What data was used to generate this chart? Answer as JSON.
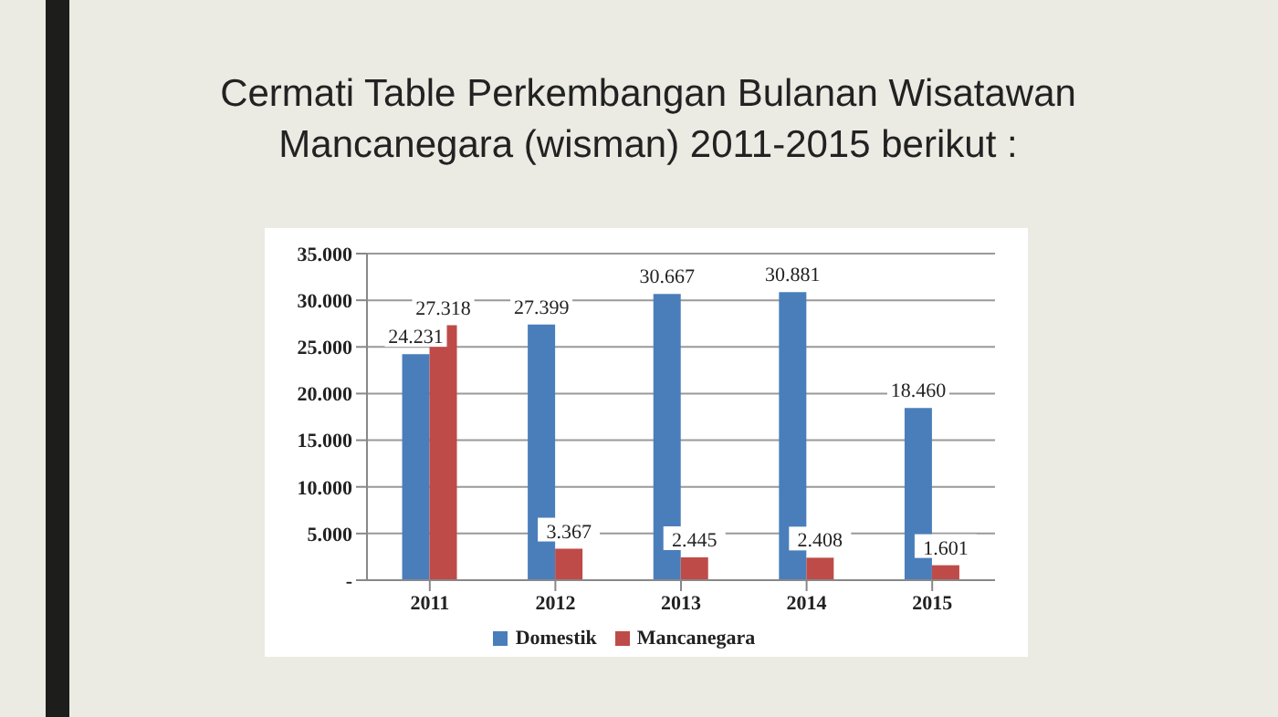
{
  "chart_data": {
    "type": "bar",
    "title": "Cermati Table Perkembangan Bulanan Wisatawan Mancanegara (wisman) 2011-2015 berikut :",
    "categories": [
      "2011",
      "2012",
      "2013",
      "2014",
      "2015"
    ],
    "series": [
      {
        "name": "Domestik",
        "color": "#4a7ebb",
        "values": [
          24231,
          27399,
          30667,
          30881,
          18460
        ],
        "value_labels": [
          "24.231",
          "27.399",
          "30.667",
          "30.881",
          "18.460"
        ]
      },
      {
        "name": "Mancanegara",
        "color": "#be4b48",
        "values": [
          27318,
          3367,
          2445,
          2408,
          1601
        ],
        "value_labels": [
          "27.318",
          "3.367",
          "2.445",
          "2.408",
          "1.601"
        ]
      }
    ],
    "ylim": [
      0,
      35000
    ],
    "yticks": [
      {
        "value": 0,
        "label": "-"
      },
      {
        "value": 5000,
        "label": "5.000"
      },
      {
        "value": 10000,
        "label": "10.000"
      },
      {
        "value": 15000,
        "label": "15.000"
      },
      {
        "value": 20000,
        "label": "20.000"
      },
      {
        "value": 25000,
        "label": "25.000"
      },
      {
        "value": 30000,
        "label": "30.000"
      },
      {
        "value": 35000,
        "label": "35.000"
      }
    ],
    "grid": "y",
    "legend": "bottom"
  }
}
